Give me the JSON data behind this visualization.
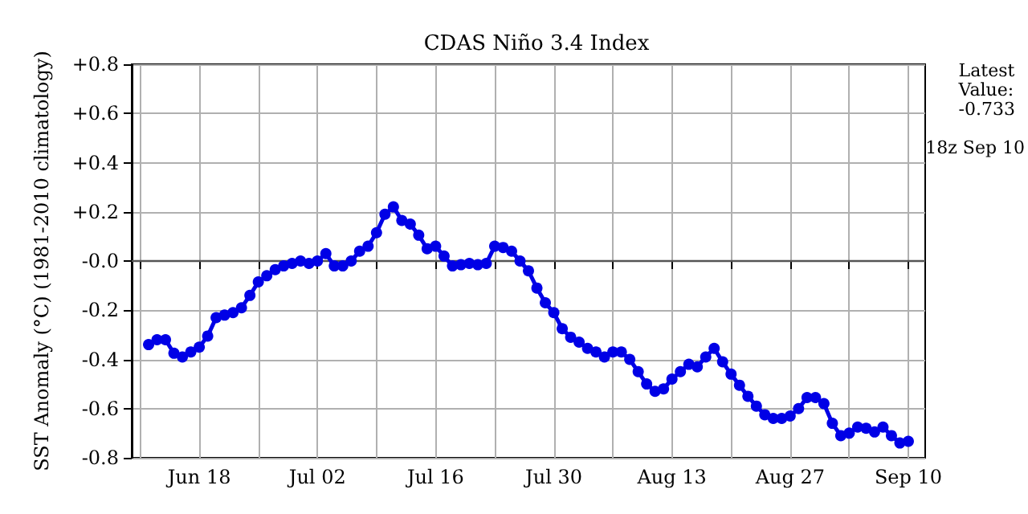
{
  "chart_data": {
    "type": "line",
    "title": "CDAS Niño 3.4 Index",
    "ylabel": "SST Anomaly (°C) (1981-2010 climatology)",
    "annotations": [
      "Latest Value: -0.733",
      "18z Sep 10"
    ],
    "x": [
      "--06-12",
      "--06-13",
      "--06-14",
      "--06-15",
      "--06-16",
      "--06-17",
      "--06-18",
      "--06-19",
      "--06-20",
      "--06-21",
      "--06-22",
      "--06-23",
      "--06-24",
      "--06-25",
      "--06-26",
      "--06-27",
      "--06-28",
      "--06-29",
      "--06-30",
      "--07-01",
      "--07-02",
      "--07-03",
      "--07-04",
      "--07-05",
      "--07-06",
      "--07-07",
      "--07-08",
      "--07-09",
      "--07-10",
      "--07-11",
      "--07-12",
      "--07-13",
      "--07-14",
      "--07-15",
      "--07-16",
      "--07-17",
      "--07-18",
      "--07-19",
      "--07-20",
      "--07-21",
      "--07-22",
      "--07-23",
      "--07-24",
      "--07-25",
      "--07-26",
      "--07-27",
      "--07-28",
      "--07-29",
      "--07-30",
      "--07-31",
      "--08-01",
      "--08-02",
      "--08-03",
      "--08-04",
      "--08-05",
      "--08-06",
      "--08-07",
      "--08-08",
      "--08-09",
      "--08-10",
      "--08-11",
      "--08-12",
      "--08-13",
      "--08-14",
      "--08-15",
      "--08-16",
      "--08-17",
      "--08-18",
      "--08-19",
      "--08-20",
      "--08-21",
      "--08-22",
      "--08-23",
      "--08-24",
      "--08-25",
      "--08-26",
      "--08-27",
      "--08-28",
      "--08-29",
      "--08-30",
      "--08-31",
      "--09-01",
      "--09-02",
      "--09-03",
      "--09-04",
      "--09-05",
      "--09-06",
      "--09-07",
      "--09-08",
      "--09-09",
      "--09-10"
    ],
    "series": [
      {
        "color": "#0000e6",
        "values": [
          -0.34,
          -0.32,
          -0.32,
          -0.375,
          -0.39,
          -0.37,
          -0.35,
          -0.305,
          -0.23,
          -0.22,
          -0.21,
          -0.19,
          -0.14,
          -0.085,
          -0.06,
          -0.035,
          -0.02,
          -0.01,
          0.0,
          -0.01,
          0.0,
          0.03,
          -0.02,
          -0.02,
          0.0,
          0.04,
          0.06,
          0.115,
          0.19,
          0.22,
          0.165,
          0.15,
          0.105,
          0.05,
          0.06,
          0.02,
          -0.02,
          -0.015,
          -0.01,
          -0.015,
          -0.01,
          0.06,
          0.055,
          0.04,
          0.0,
          -0.04,
          -0.11,
          -0.17,
          -0.21,
          -0.275,
          -0.31,
          -0.33,
          -0.355,
          -0.37,
          -0.39,
          -0.37,
          -0.37,
          -0.4,
          -0.45,
          -0.5,
          -0.53,
          -0.52,
          -0.48,
          -0.45,
          -0.42,
          -0.43,
          -0.39,
          -0.355,
          -0.41,
          -0.46,
          -0.505,
          -0.55,
          -0.59,
          -0.625,
          -0.64,
          -0.64,
          -0.63,
          -0.6,
          -0.555,
          -0.555,
          -0.58,
          -0.66,
          -0.71,
          -0.7,
          -0.675,
          -0.68,
          -0.695,
          -0.675,
          -0.71,
          -0.74,
          -0.733
        ]
      }
    ],
    "xlim": [
      "--06-10",
      "--09-12"
    ],
    "xticks": [
      {
        "value": "--06-11",
        "label": null
      },
      {
        "value": "--06-18",
        "label": "Jun 18"
      },
      {
        "value": "--06-25",
        "label": null
      },
      {
        "value": "--07-02",
        "label": "Jul 02"
      },
      {
        "value": "--07-09",
        "label": null
      },
      {
        "value": "--07-16",
        "label": "Jul 16"
      },
      {
        "value": "--07-23",
        "label": null
      },
      {
        "value": "--07-30",
        "label": "Jul 30"
      },
      {
        "value": "--08-06",
        "label": null
      },
      {
        "value": "--08-13",
        "label": "Aug 13"
      },
      {
        "value": "--08-20",
        "label": null
      },
      {
        "value": "--08-27",
        "label": "Aug 27"
      },
      {
        "value": "--09-03",
        "label": null
      },
      {
        "value": "--09-10",
        "label": "Sep 10"
      }
    ],
    "ylim": [
      -0.8,
      0.8
    ],
    "yticks": [
      {
        "value": -0.8,
        "label": "-0.8"
      },
      {
        "value": -0.6,
        "label": "-0.6"
      },
      {
        "value": -0.4,
        "label": "-0.4"
      },
      {
        "value": -0.2,
        "label": "-0.2"
      },
      {
        "value": 0,
        "label": "-0.0"
      },
      {
        "value": 0.2,
        "label": "+0.2"
      },
      {
        "value": 0.4,
        "label": "+0.4"
      },
      {
        "value": 0.6,
        "label": "+0.6"
      },
      {
        "value": 0.8,
        "label": "+0.8"
      }
    ],
    "ref_lines": [
      {
        "axis": "y",
        "value": 0,
        "color": "#555555"
      }
    ],
    "grid": true,
    "marker": "circle",
    "line_style": "solid"
  }
}
